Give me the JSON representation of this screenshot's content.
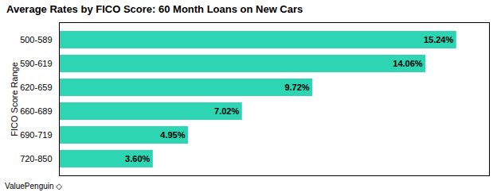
{
  "chart_data": {
    "type": "bar",
    "title": "Average Rates by FICO Score: 60 Month Loans on New Cars",
    "categories": [
      "500-589",
      "590-619",
      "620-659",
      "660-689",
      "690-719",
      "720-850"
    ],
    "values": [
      15.24,
      14.06,
      9.72,
      7.02,
      4.95,
      3.6
    ],
    "value_labels": [
      "15.24%",
      "14.06%",
      "9.72%",
      "7.02%",
      "4.95%",
      "3.60%"
    ],
    "color": "#2dd5b2",
    "ylabel": "FICO Score Range",
    "xlim": [
      0,
      16.5
    ],
    "orientation": "horizontal",
    "data_labels": true,
    "tick_labels": "y",
    "grid": false,
    "annotations": [
      "ValuePenguin",
      "◇"
    ]
  }
}
